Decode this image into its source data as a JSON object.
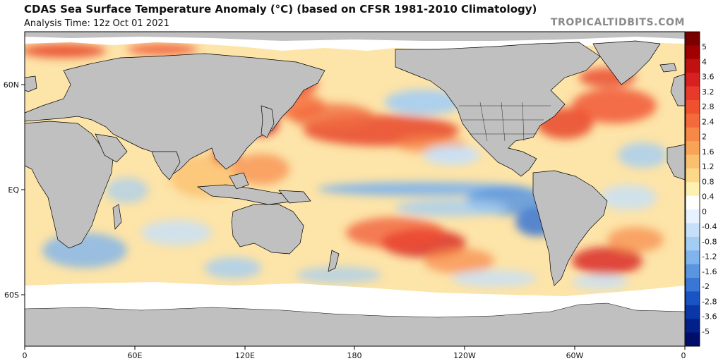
{
  "header": {
    "title": "CDAS Sea Surface Temperature Anomaly (°C) (based on CFSR 1981-2010 Climatology)",
    "subtitle": "Analysis Time: 12z Oct 01 2021",
    "watermark": "TROPICALTIDBITS.COM"
  },
  "map": {
    "x_ticks": [
      "0",
      "60E",
      "120E",
      "180",
      "120W",
      "60W",
      "0"
    ],
    "y_ticks": [
      "60N",
      "EQ",
      "60S"
    ],
    "land_color": "#c0c0c0",
    "ice_color": "#ffffff",
    "coastline_color": "#000000"
  },
  "colorbar": {
    "labels": [
      "5",
      "4",
      "3.6",
      "3.2",
      "2.8",
      "2.4",
      "2",
      "1.6",
      "1.2",
      "0.8",
      "0.4",
      "0",
      "-0.4",
      "-0.8",
      "-1.2",
      "-1.6",
      "-2",
      "-2.8",
      "-3.6",
      "-5"
    ],
    "colors": [
      "#7a0000",
      "#a00000",
      "#c01010",
      "#d82020",
      "#e83a2a",
      "#f05030",
      "#f46a3c",
      "#f68848",
      "#f8a458",
      "#fac070",
      "#fcd888",
      "#fef0b0",
      "#ffffff",
      "#e6f2ff",
      "#c6e0fa",
      "#a4cdf4",
      "#80b4ec",
      "#5a96e0",
      "#3a76d4",
      "#1a54c4",
      "#0a36a8",
      "#02208a",
      "#000e6a"
    ]
  }
}
